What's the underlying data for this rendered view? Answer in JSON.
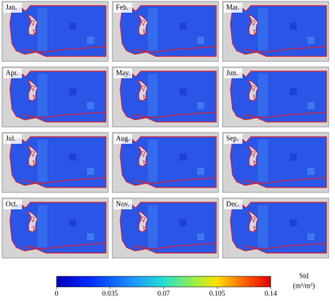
{
  "panels": [
    {
      "label": "Jan."
    },
    {
      "label": "Feb."
    },
    {
      "label": "Mar."
    },
    {
      "label": "Apr."
    },
    {
      "label": "May."
    },
    {
      "label": "Jun."
    },
    {
      "label": "Jul."
    },
    {
      "label": "Aug."
    },
    {
      "label": "Sep."
    },
    {
      "label": "Oct."
    },
    {
      "label": "Nov."
    },
    {
      "label": "Dec."
    }
  ],
  "colorbar": {
    "title": "Std",
    "unit": "(m³/m³)",
    "range": [
      0,
      0.14
    ],
    "ticks": [
      0,
      0.035,
      0.07,
      0.105,
      0.14
    ]
  }
}
